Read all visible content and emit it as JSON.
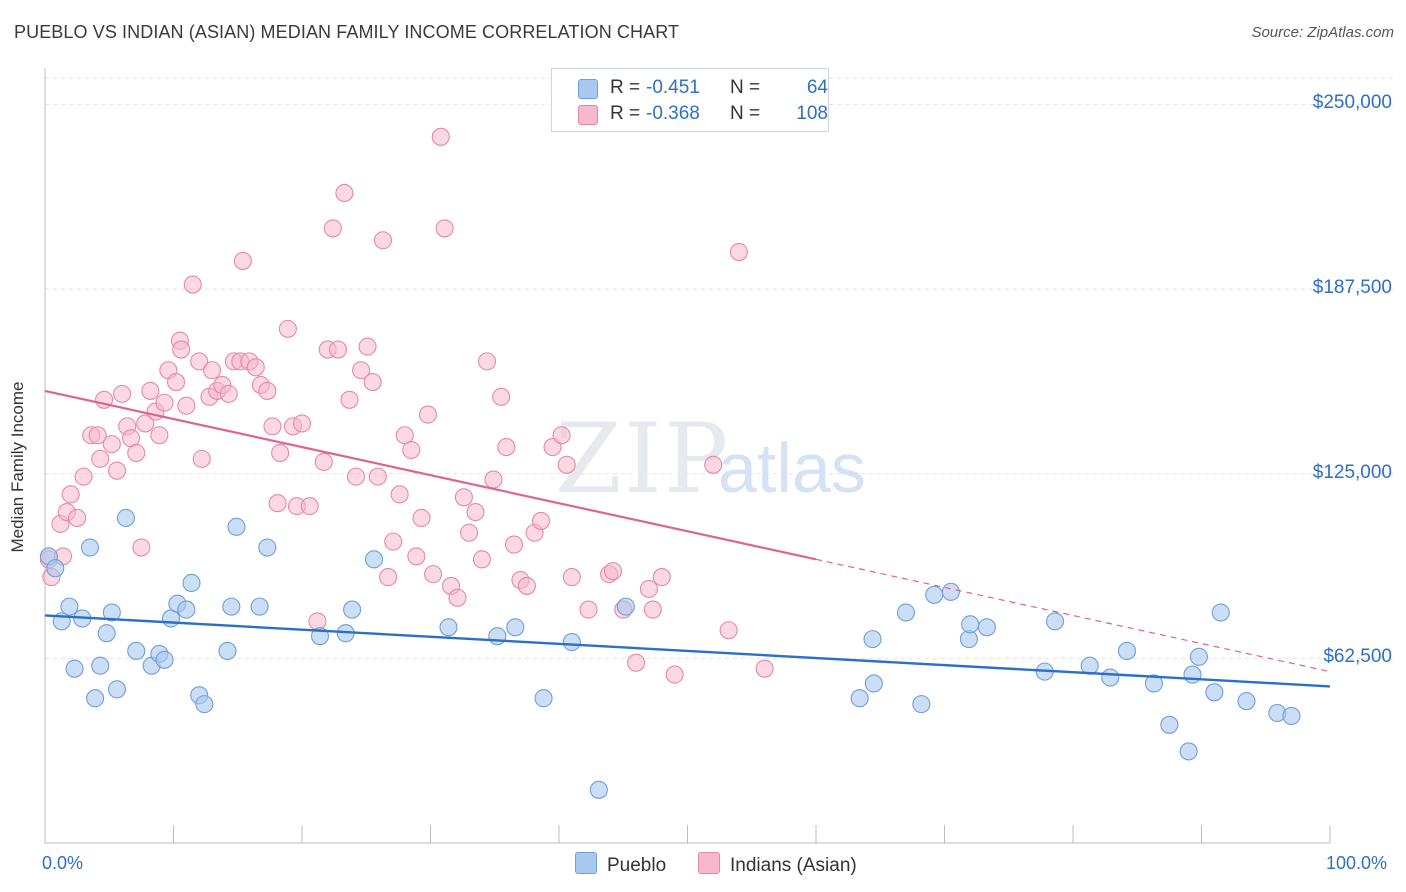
{
  "header": {
    "title": "PUEBLO VS INDIAN (ASIAN) MEDIAN FAMILY INCOME CORRELATION CHART",
    "source": "Source: ZipAtlas.com"
  },
  "watermark": {
    "zip": "ZIP",
    "atlas": "atlas"
  },
  "legend": {
    "rows": [
      {
        "r_label": "R =",
        "r_value": "-0.451",
        "n_label": "N =",
        "n_value": "64",
        "swatch": "#a9c8f0"
      },
      {
        "r_label": "R =",
        "r_value": "-0.368",
        "n_label": "N =",
        "n_value": "108",
        "swatch": "#f7b8cb"
      }
    ]
  },
  "colors": {
    "pueblo_fill": "#a9c8f0",
    "pueblo_stroke": "#6f9fd8",
    "pueblo_line": "#2a6fca",
    "indian_fill": "#f7b8cb",
    "indian_stroke": "#e48aa6",
    "indian_line": "#e0628f",
    "tick_text": "#2f6fc4",
    "grid": "#e2e2e2"
  },
  "chart_data": {
    "type": "scatter",
    "title": "PUEBLO VS INDIAN (ASIAN) MEDIAN FAMILY INCOME CORRELATION CHART",
    "xlabel": "",
    "ylabel": "Median Family Income",
    "xlim": [
      0,
      100
    ],
    "ylim": [
      0,
      265000
    ],
    "x_tick_labels": [
      "0.0%",
      "100.0%"
    ],
    "y_ticks": [
      62500,
      125000,
      187500,
      250000
    ],
    "y_tick_labels": [
      "$62,500",
      "$125,000",
      "$187,500",
      "$250,000"
    ],
    "grid": true,
    "legend_position": "bottom-center",
    "series": [
      {
        "name": "Pueblo",
        "r": -0.451,
        "n": 64,
        "trend": {
          "x": [
            0,
            100
          ],
          "y": [
            77000,
            53000
          ]
        },
        "points": [
          [
            0.3,
            97000
          ],
          [
            0.8,
            93000
          ],
          [
            1.3,
            75000
          ],
          [
            1.9,
            80000
          ],
          [
            2.3,
            59000
          ],
          [
            2.9,
            76000
          ],
          [
            3.5,
            100000
          ],
          [
            3.9,
            49000
          ],
          [
            4.3,
            60000
          ],
          [
            4.8,
            71000
          ],
          [
            5.2,
            78000
          ],
          [
            5.6,
            52000
          ],
          [
            6.3,
            110000
          ],
          [
            7.1,
            65000
          ],
          [
            8.3,
            60000
          ],
          [
            8.9,
            64000
          ],
          [
            9.3,
            62000
          ],
          [
            9.8,
            76000
          ],
          [
            10.3,
            81000
          ],
          [
            11.0,
            79000
          ],
          [
            11.4,
            88000
          ],
          [
            12.0,
            50000
          ],
          [
            12.4,
            47000
          ],
          [
            14.2,
            65000
          ],
          [
            14.5,
            80000
          ],
          [
            14.9,
            107000
          ],
          [
            16.7,
            80000
          ],
          [
            17.3,
            100000
          ],
          [
            21.4,
            70000
          ],
          [
            23.4,
            71000
          ],
          [
            23.9,
            79000
          ],
          [
            25.6,
            96000
          ],
          [
            31.4,
            73000
          ],
          [
            35.2,
            70000
          ],
          [
            36.6,
            73000
          ],
          [
            38.8,
            49000
          ],
          [
            41.0,
            68000
          ],
          [
            43.1,
            18000
          ],
          [
            45.2,
            80000
          ],
          [
            64.4,
            69000
          ],
          [
            63.4,
            49000
          ],
          [
            64.5,
            54000
          ],
          [
            67.0,
            78000
          ],
          [
            68.2,
            47000
          ],
          [
            69.2,
            84000
          ],
          [
            70.5,
            85000
          ],
          [
            71.9,
            69000
          ],
          [
            72.0,
            74000
          ],
          [
            73.3,
            73000
          ],
          [
            77.8,
            58000
          ],
          [
            78.6,
            75000
          ],
          [
            81.3,
            60000
          ],
          [
            82.9,
            56000
          ],
          [
            84.2,
            65000
          ],
          [
            86.3,
            54000
          ],
          [
            87.5,
            40000
          ],
          [
            89.0,
            31000
          ],
          [
            89.3,
            57000
          ],
          [
            89.8,
            63000
          ],
          [
            91.0,
            51000
          ],
          [
            91.5,
            78000
          ],
          [
            93.5,
            48000
          ],
          [
            95.9,
            44000
          ],
          [
            97.0,
            43000
          ]
        ]
      },
      {
        "name": "Indians (Asian)",
        "r": -0.368,
        "n": 108,
        "trend": {
          "x": [
            0,
            60
          ],
          "y": [
            153000,
            96000
          ]
        },
        "trend_dashed": {
          "x": [
            60,
            100
          ],
          "y": [
            96000,
            58000
          ]
        },
        "points": [
          [
            0.3,
            96000
          ],
          [
            0.5,
            90000
          ],
          [
            1.2,
            108000
          ],
          [
            1.4,
            97000
          ],
          [
            1.7,
            112000
          ],
          [
            2.0,
            118000
          ],
          [
            2.5,
            110000
          ],
          [
            3.0,
            124000
          ],
          [
            3.6,
            138000
          ],
          [
            4.1,
            138000
          ],
          [
            4.3,
            130000
          ],
          [
            4.6,
            150000
          ],
          [
            5.2,
            135000
          ],
          [
            5.6,
            126000
          ],
          [
            6.0,
            152000
          ],
          [
            6.4,
            141000
          ],
          [
            6.7,
            137000
          ],
          [
            7.1,
            132000
          ],
          [
            7.5,
            100000
          ],
          [
            7.8,
            142000
          ],
          [
            8.2,
            153000
          ],
          [
            8.6,
            146000
          ],
          [
            8.9,
            138000
          ],
          [
            9.3,
            149000
          ],
          [
            9.6,
            160000
          ],
          [
            10.2,
            156000
          ],
          [
            10.5,
            170000
          ],
          [
            10.6,
            167000
          ],
          [
            11.0,
            148000
          ],
          [
            11.5,
            189000
          ],
          [
            12.0,
            163000
          ],
          [
            12.2,
            130000
          ],
          [
            12.8,
            151000
          ],
          [
            13.0,
            160000
          ],
          [
            13.4,
            153000
          ],
          [
            13.8,
            155000
          ],
          [
            14.3,
            152000
          ],
          [
            14.7,
            163000
          ],
          [
            15.2,
            163000
          ],
          [
            15.4,
            197000
          ],
          [
            15.9,
            163000
          ],
          [
            16.4,
            161000
          ],
          [
            16.8,
            155000
          ],
          [
            17.3,
            153000
          ],
          [
            17.7,
            141000
          ],
          [
            18.1,
            115000
          ],
          [
            18.3,
            132000
          ],
          [
            18.9,
            174000
          ],
          [
            19.3,
            141000
          ],
          [
            19.6,
            114000
          ],
          [
            20.0,
            142000
          ],
          [
            20.6,
            114000
          ],
          [
            21.2,
            75000
          ],
          [
            21.7,
            129000
          ],
          [
            22.0,
            167000
          ],
          [
            22.4,
            208000
          ],
          [
            22.8,
            167000
          ],
          [
            23.3,
            220000
          ],
          [
            23.7,
            150000
          ],
          [
            24.2,
            124000
          ],
          [
            24.6,
            160000
          ],
          [
            25.1,
            168000
          ],
          [
            25.5,
            156000
          ],
          [
            25.9,
            124000
          ],
          [
            26.3,
            204000
          ],
          [
            26.7,
            90000
          ],
          [
            27.1,
            102000
          ],
          [
            27.6,
            118000
          ],
          [
            28.0,
            138000
          ],
          [
            28.5,
            133000
          ],
          [
            28.9,
            97000
          ],
          [
            29.3,
            110000
          ],
          [
            29.8,
            145000
          ],
          [
            30.2,
            91000
          ],
          [
            30.8,
            239000
          ],
          [
            31.1,
            208000
          ],
          [
            31.6,
            87000
          ],
          [
            32.1,
            83000
          ],
          [
            32.6,
            117000
          ],
          [
            33.0,
            105000
          ],
          [
            33.5,
            112000
          ],
          [
            34.0,
            96000
          ],
          [
            34.4,
            163000
          ],
          [
            34.9,
            123000
          ],
          [
            35.5,
            151000
          ],
          [
            35.9,
            134000
          ],
          [
            36.5,
            101000
          ],
          [
            37.0,
            89000
          ],
          [
            37.5,
            87000
          ],
          [
            38.1,
            105000
          ],
          [
            38.6,
            109000
          ],
          [
            39.5,
            134000
          ],
          [
            40.2,
            138000
          ],
          [
            40.6,
            128000
          ],
          [
            41.0,
            90000
          ],
          [
            42.3,
            79000
          ],
          [
            43.9,
            91000
          ],
          [
            44.2,
            92000
          ],
          [
            45.0,
            79000
          ],
          [
            46.0,
            61000
          ],
          [
            47.0,
            86000
          ],
          [
            47.3,
            79000
          ],
          [
            48.0,
            90000
          ],
          [
            49.0,
            57000
          ],
          [
            53.2,
            72000
          ],
          [
            54.0,
            200000
          ],
          [
            56.0,
            59000
          ],
          [
            52.0,
            128000
          ]
        ]
      }
    ]
  },
  "bottom_legend": {
    "items": [
      "Pueblo",
      "Indians (Asian)"
    ]
  }
}
